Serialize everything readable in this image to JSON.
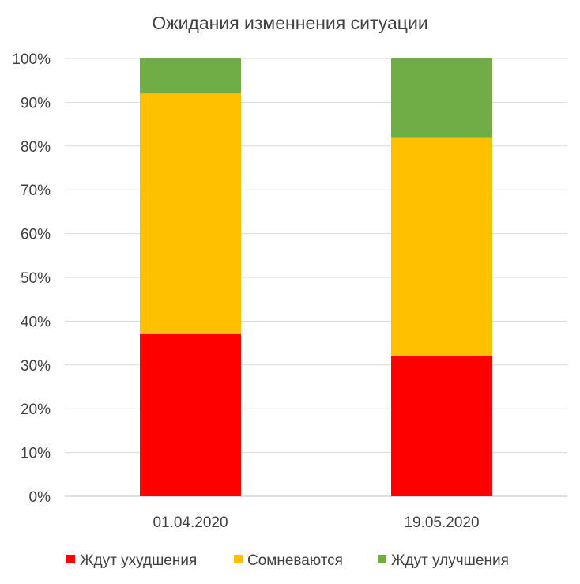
{
  "chart_data": {
    "type": "bar",
    "stacked": true,
    "title": "Ожидания изменнения ситуации",
    "categories": [
      "01.04.2020",
      "19.05.2020"
    ],
    "series": [
      {
        "name": "Ждут ухудшения",
        "color": "#ff0000",
        "values": [
          37,
          32
        ]
      },
      {
        "name": "Сомневаются",
        "color": "#ffc000",
        "values": [
          55,
          50
        ]
      },
      {
        "name": "Ждут улучшения",
        "color": "#70ad47",
        "values": [
          8,
          18
        ]
      }
    ],
    "y_ticks": [
      "0%",
      "10%",
      "20%",
      "30%",
      "40%",
      "50%",
      "60%",
      "70%",
      "80%",
      "90%",
      "100%"
    ],
    "ylim": [
      0,
      100
    ],
    "grid": true,
    "legend_position": "bottom"
  }
}
